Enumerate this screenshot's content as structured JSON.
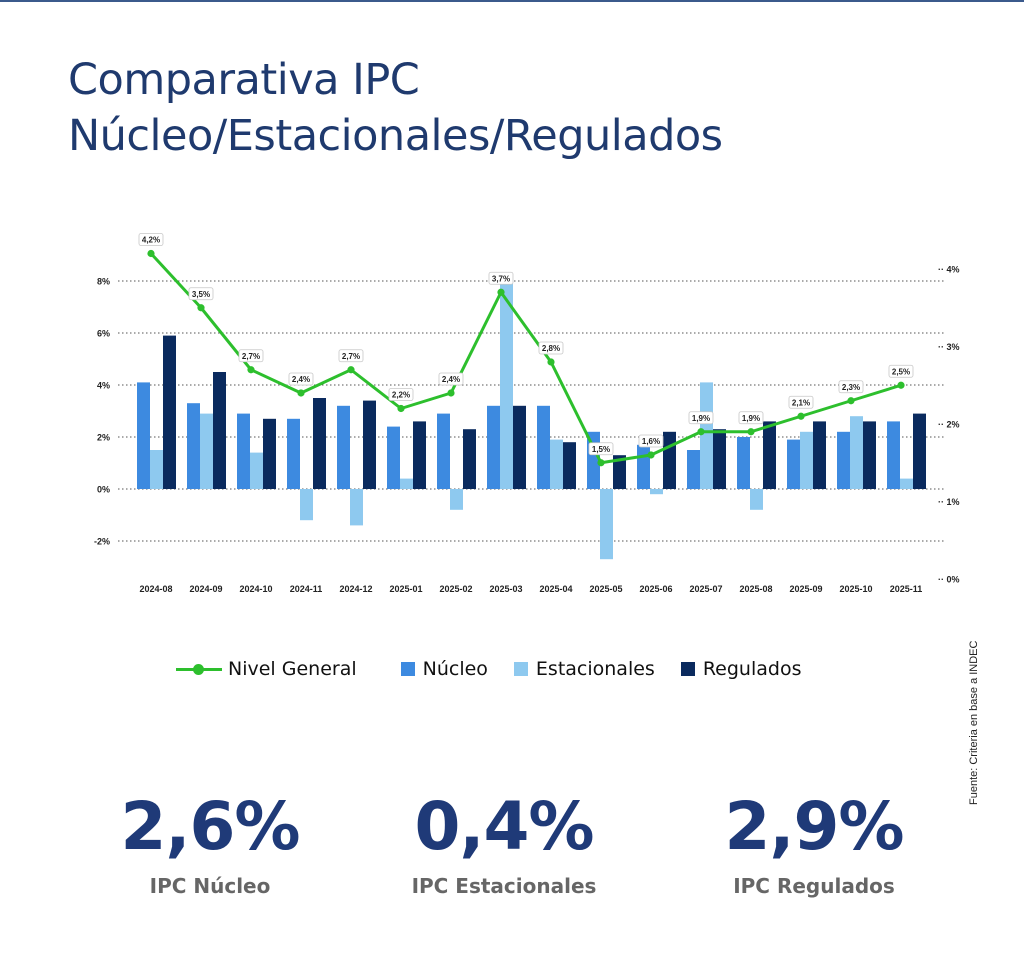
{
  "colors": {
    "title": "#1f3a6e",
    "top_rule": "#3b5a8c",
    "nucleo": "#3d8ae0",
    "estacionales": "#8ec9ef",
    "regulados": "#0a2a5e",
    "nivel_general": "#2dbf2d",
    "kpi_value": "#1f3a78"
  },
  "title": {
    "line1": "Comparativa IPC",
    "line2": "Núcleo/Estacionales/Regulados"
  },
  "chart_data": {
    "type": "bar",
    "categories": [
      "2024-08",
      "2024-09",
      "2024-10",
      "2024-11",
      "2024-12",
      "2025-01",
      "2025-02",
      "2025-03",
      "2025-04",
      "2025-05",
      "2025-06",
      "2025-07",
      "2025-08",
      "2025-09",
      "2025-10",
      "2025-11"
    ],
    "series": [
      {
        "name": "Núcleo",
        "axis": "left",
        "values": [
          4.1,
          3.3,
          2.9,
          2.7,
          3.2,
          2.4,
          2.9,
          3.2,
          3.2,
          2.2,
          1.7,
          1.5,
          2.0,
          1.9,
          2.2,
          2.6
        ]
      },
      {
        "name": "Estacionales",
        "axis": "left",
        "values": [
          1.5,
          2.9,
          1.4,
          -1.2,
          -1.4,
          0.4,
          -0.8,
          7.9,
          1.9,
          -2.7,
          -0.2,
          4.1,
          -0.8,
          2.2,
          2.8,
          0.4
        ]
      },
      {
        "name": "Regulados",
        "axis": "left",
        "values": [
          5.9,
          4.5,
          2.7,
          3.5,
          3.4,
          2.6,
          2.3,
          3.2,
          1.8,
          1.3,
          2.2,
          2.3,
          2.6,
          2.6,
          2.6,
          2.9
        ]
      },
      {
        "name": "Nivel General",
        "type": "line",
        "axis": "right",
        "values": [
          4.2,
          3.5,
          2.7,
          2.4,
          2.7,
          2.2,
          2.4,
          3.7,
          2.8,
          1.5,
          1.6,
          1.9,
          1.9,
          2.1,
          2.3,
          2.5
        ],
        "labels": [
          "4,2%",
          "3,5%",
          "2,7%",
          "2,4%",
          "2,7%",
          "2,2%",
          "2,4%",
          "3,7%",
          "2,8%",
          "1,5%",
          "1,6%",
          "1,9%",
          "1,9%",
          "2,1%",
          "2,3%",
          "2,5%"
        ]
      }
    ],
    "y_left": {
      "ticks": [
        8,
        6,
        4,
        2,
        0,
        -2
      ],
      "tick_labels": [
        "8%",
        "6%",
        "4%",
        "2%",
        "0%",
        "-2%"
      ],
      "ylim": [
        -3.5,
        8.5
      ]
    },
    "y_right": {
      "ticks": [
        4,
        3,
        2,
        1,
        0
      ],
      "tick_labels": [
        "4%",
        "3%",
        "2%",
        "1%",
        "0%"
      ],
      "ylim": [
        0,
        4.2
      ]
    },
    "grid": true,
    "legend": "bottom"
  },
  "legend": {
    "nivel_general": "Nivel General",
    "nucleo": "Núcleo",
    "estacionales": "Estacionales",
    "regulados": "Regulados"
  },
  "source": "Fuente: Criteria en base a INDEC",
  "kpis": [
    {
      "value": "2,6%",
      "label": "IPC Núcleo"
    },
    {
      "value": "0,4%",
      "label": "IPC Estacionales"
    },
    {
      "value": "2,9%",
      "label": "IPC Regulados"
    }
  ]
}
